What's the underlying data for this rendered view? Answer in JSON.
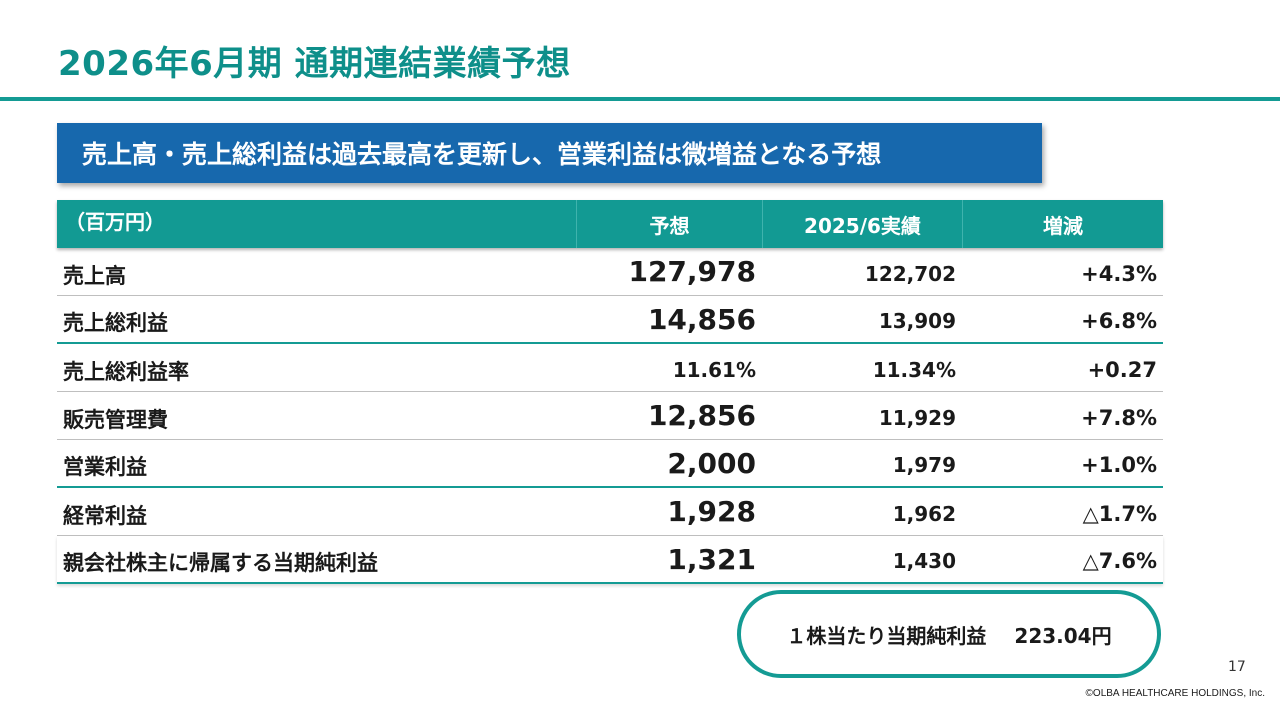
{
  "title": "2026年6月期 通期連結業績予想",
  "banner": "売上高・売上総利益は過去最高を更新し、営業利益は微増益となる予想",
  "table": {
    "unit": "（百万円）",
    "headers": [
      "予想",
      "2025/6実績",
      "増減"
    ],
    "rows": [
      {
        "label": "売上高",
        "forecast": "127,978",
        "actual": "122,702",
        "change": "+4.3%"
      },
      {
        "label": "売上総利益",
        "forecast": "14,856",
        "actual": "13,909",
        "change": "+6.8%"
      },
      {
        "label": "売上総利益率",
        "forecast": "11.61%",
        "actual": "11.34%",
        "change": "+0.27"
      },
      {
        "label": "販売管理費",
        "forecast": "12,856",
        "actual": "11,929",
        "change": "+7.8%"
      },
      {
        "label": "営業利益",
        "forecast": "2,000",
        "actual": "1,979",
        "change": "+1.0%"
      },
      {
        "label": "経常利益",
        "forecast": "1,928",
        "actual": "1,962",
        "change": "△1.7%"
      },
      {
        "label": "親会社株主に帰属する当期純利益",
        "forecast": "1,321",
        "actual": "1,430",
        "change": "△7.6%"
      }
    ]
  },
  "eps": {
    "label": "１株当たり当期純利益",
    "value": "223.04円"
  },
  "page_number": "17",
  "copyright": "©OLBA HEALTHCARE HOLDINGS, Inc.",
  "colors": {
    "teal": "#129a93",
    "banner_blue": "#1768ad"
  }
}
